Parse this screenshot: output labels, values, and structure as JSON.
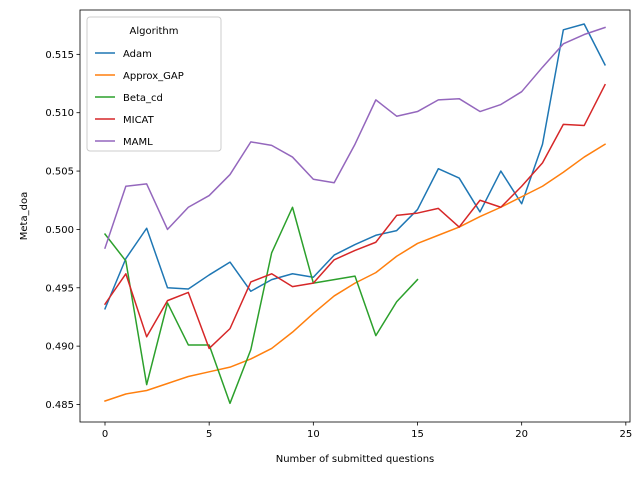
{
  "chart_data": {
    "type": "line",
    "xlabel": "Number of submitted questions",
    "ylabel": "Meta_doa",
    "xlim": [
      -1.2,
      25.2
    ],
    "ylim": [
      0.4835,
      0.5188
    ],
    "xticks": [
      0,
      5,
      10,
      15,
      20,
      25
    ],
    "yticks": [
      0.485,
      0.49,
      0.495,
      0.5,
      0.505,
      0.51,
      0.515
    ],
    "ytick_labels": [
      "0.485",
      "0.490",
      "0.495",
      "0.500",
      "0.505",
      "0.510",
      "0.515"
    ],
    "grid": false,
    "legend": {
      "title": "Algorithm",
      "placement": "top-left"
    },
    "series": [
      {
        "name": "Adam",
        "color": "#1f77b4",
        "x": [
          0,
          1,
          2,
          3,
          4,
          5,
          6,
          7,
          8,
          9,
          10,
          11,
          12,
          13,
          14,
          15,
          16,
          17,
          18,
          19,
          20,
          21,
          22,
          23,
          24
        ],
        "values": [
          0.4932,
          0.4975,
          0.5001,
          0.495,
          0.4949,
          0.4961,
          0.4972,
          0.4947,
          0.4957,
          0.4962,
          0.4959,
          0.4978,
          0.4987,
          0.4995,
          0.4999,
          0.5017,
          0.5052,
          0.5044,
          0.5015,
          0.505,
          0.5022,
          0.5073,
          0.5171,
          0.5176,
          0.5141
        ]
      },
      {
        "name": "Approx_GAP",
        "color": "#ff7f0e",
        "x": [
          0,
          1,
          2,
          3,
          4,
          5,
          6,
          7,
          8,
          9,
          10,
          11,
          12,
          13,
          14,
          15,
          16,
          17,
          18,
          19,
          20,
          21,
          22,
          23,
          24
        ],
        "values": [
          0.4853,
          0.4859,
          0.4862,
          0.4868,
          0.4874,
          0.4878,
          0.4882,
          0.4889,
          0.4898,
          0.4912,
          0.4928,
          0.4943,
          0.4954,
          0.4963,
          0.4977,
          0.4988,
          0.4995,
          0.5002,
          0.5011,
          0.5019,
          0.5028,
          0.5037,
          0.5049,
          0.5062,
          0.5073
        ]
      },
      {
        "name": "Beta_cd",
        "color": "#2ca02c",
        "x": [
          0,
          1,
          2,
          3,
          4,
          5,
          6,
          7,
          8,
          9,
          10,
          11,
          12,
          13,
          14,
          15
        ],
        "values": [
          0.4996,
          0.4973,
          0.4867,
          0.4937,
          0.4901,
          0.4901,
          0.4851,
          0.4897,
          0.498,
          0.5019,
          0.4954,
          0.4957,
          0.496,
          0.4909,
          0.4938,
          0.4957
        ]
      },
      {
        "name": "MICAT",
        "color": "#d62728",
        "x": [
          0,
          1,
          2,
          3,
          4,
          5,
          6,
          7,
          8,
          9,
          10,
          11,
          12,
          13,
          14,
          15,
          16,
          17,
          18,
          19,
          20,
          21,
          22,
          23,
          24
        ],
        "values": [
          0.4936,
          0.4962,
          0.4908,
          0.4939,
          0.4946,
          0.4898,
          0.4915,
          0.4955,
          0.4962,
          0.4951,
          0.4954,
          0.4974,
          0.4982,
          0.4989,
          0.5012,
          0.5014,
          0.5018,
          0.5002,
          0.5025,
          0.5019,
          0.5037,
          0.5057,
          0.509,
          0.5089,
          0.5124
        ]
      },
      {
        "name": "MAML",
        "color": "#9467bd",
        "x": [
          0,
          1,
          2,
          3,
          4,
          5,
          6,
          7,
          8,
          9,
          10,
          11,
          12,
          13,
          14,
          15,
          16,
          17,
          18,
          19,
          20,
          21,
          22,
          23,
          24
        ],
        "values": [
          0.4984,
          0.5037,
          0.5039,
          0.5,
          0.5019,
          0.5029,
          0.5047,
          0.5075,
          0.5072,
          0.5062,
          0.5043,
          0.504,
          0.5073,
          0.5111,
          0.5097,
          0.5101,
          0.5111,
          0.5112,
          0.5101,
          0.5107,
          0.5118,
          0.5139,
          0.5159,
          0.5167,
          0.5173
        ]
      }
    ]
  }
}
